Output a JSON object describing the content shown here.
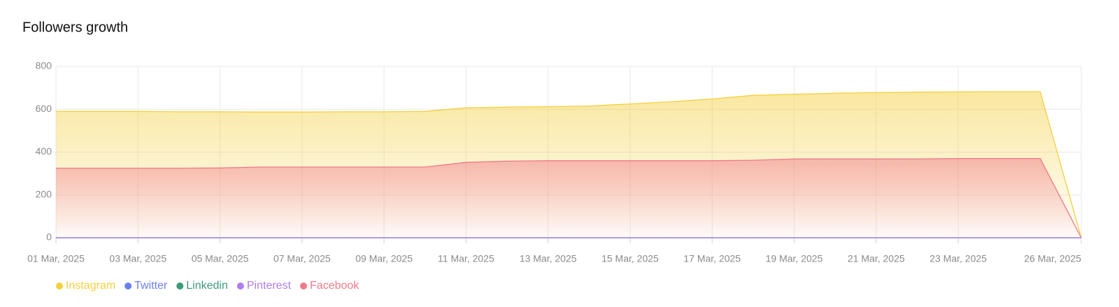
{
  "chart_data": {
    "type": "area",
    "title": "Followers growth",
    "categories": [
      "01 Mar, 2025",
      null,
      "03 Mar, 2025",
      null,
      "05 Mar, 2025",
      null,
      "07 Mar, 2025",
      null,
      "09 Mar, 2025",
      null,
      "11 Mar, 2025",
      null,
      "13 Mar, 2025",
      null,
      "15 Mar, 2025",
      null,
      "17 Mar, 2025",
      null,
      "19 Mar, 2025",
      null,
      "21 Mar, 2025",
      null,
      "23 Mar, 2025",
      null,
      null,
      "26 Mar, 2025"
    ],
    "series": [
      {
        "name": "Instagram",
        "color": "#f4d03f",
        "values": [
          590,
          590,
          590,
          588,
          588,
          587,
          587,
          588,
          588,
          590,
          607,
          610,
          612,
          615,
          625,
          635,
          648,
          665,
          670,
          675,
          678,
          680,
          681,
          682,
          682,
          0
        ]
      },
      {
        "name": "Twitter",
        "color": "#6b7ff0",
        "values": [
          0,
          0,
          0,
          0,
          0,
          0,
          0,
          0,
          0,
          0,
          0,
          0,
          0,
          0,
          0,
          0,
          0,
          0,
          0,
          0,
          0,
          0,
          0,
          0,
          0,
          0
        ]
      },
      {
        "name": "Linkedin",
        "color": "#3d9a78",
        "values": [
          0,
          0,
          0,
          0,
          0,
          0,
          0,
          0,
          0,
          0,
          0,
          0,
          0,
          0,
          0,
          0,
          0,
          0,
          0,
          0,
          0,
          0,
          0,
          0,
          0,
          0
        ]
      },
      {
        "name": "Pinterest",
        "color": "#b07cf0",
        "values": [
          0,
          0,
          0,
          0,
          0,
          0,
          0,
          0,
          0,
          0,
          0,
          0,
          0,
          0,
          0,
          0,
          0,
          0,
          0,
          0,
          0,
          0,
          0,
          0,
          0,
          0
        ]
      },
      {
        "name": "Facebook",
        "color": "#f07a8a",
        "values": [
          325,
          325,
          325,
          325,
          326,
          330,
          330,
          330,
          330,
          330,
          352,
          358,
          360,
          360,
          360,
          360,
          360,
          362,
          368,
          368,
          368,
          368,
          370,
          370,
          370,
          0
        ]
      }
    ],
    "ylim": [
      0,
      800
    ],
    "yticks": [
      0,
      200,
      400,
      600,
      800
    ],
    "grid": true
  }
}
